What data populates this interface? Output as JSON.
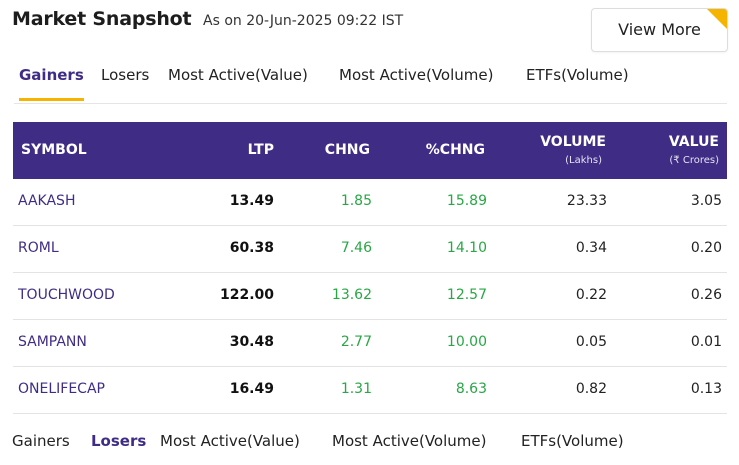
{
  "header": {
    "title": "Market Snapshot",
    "as_on": "As on 20-Jun-2025 09:22 IST",
    "view_more": "View More"
  },
  "tabs_top": [
    {
      "label": "Gainers",
      "active": true
    },
    {
      "label": "Losers",
      "active": false
    },
    {
      "label": "Most Active(Value)",
      "active": false
    },
    {
      "label": "Most Active(Volume)",
      "active": false
    },
    {
      "label": "ETFs(Volume)",
      "active": false
    }
  ],
  "table": {
    "headers": {
      "symbol": "SYMBOL",
      "ltp": "LTP",
      "chng": "CHNG",
      "pchng": "%CHNG",
      "volume": "VOLUME",
      "volume_unit": "(Lakhs)",
      "value": "VALUE",
      "value_unit": "(₹ Crores)"
    },
    "rows": [
      {
        "symbol": "AAKASH",
        "ltp": "13.49",
        "chng": "1.85",
        "pchng": "15.89",
        "volume": "23.33",
        "value": "3.05"
      },
      {
        "symbol": "ROML",
        "ltp": "60.38",
        "chng": "7.46",
        "pchng": "14.10",
        "volume": "0.34",
        "value": "0.20"
      },
      {
        "symbol": "TOUCHWOOD",
        "ltp": "122.00",
        "chng": "13.62",
        "pchng": "12.57",
        "volume": "0.22",
        "value": "0.26"
      },
      {
        "symbol": "SAMPANN",
        "ltp": "30.48",
        "chng": "2.77",
        "pchng": "10.00",
        "volume": "0.05",
        "value": "0.01"
      },
      {
        "symbol": "ONELIFECAP",
        "ltp": "16.49",
        "chng": "1.31",
        "pchng": "8.63",
        "volume": "0.82",
        "value": "0.13"
      }
    ]
  },
  "tabs_bottom": [
    {
      "label": "Gainers",
      "active": false
    },
    {
      "label": "Losers",
      "active": true
    },
    {
      "label": "Most Active(Value)",
      "active": false
    },
    {
      "label": "Most Active(Volume)",
      "active": false
    },
    {
      "label": "ETFs(Volume)",
      "active": false
    }
  ],
  "colors": {
    "brand": "#3f2d85",
    "accent": "#f5b400",
    "gain": "#28a745"
  }
}
